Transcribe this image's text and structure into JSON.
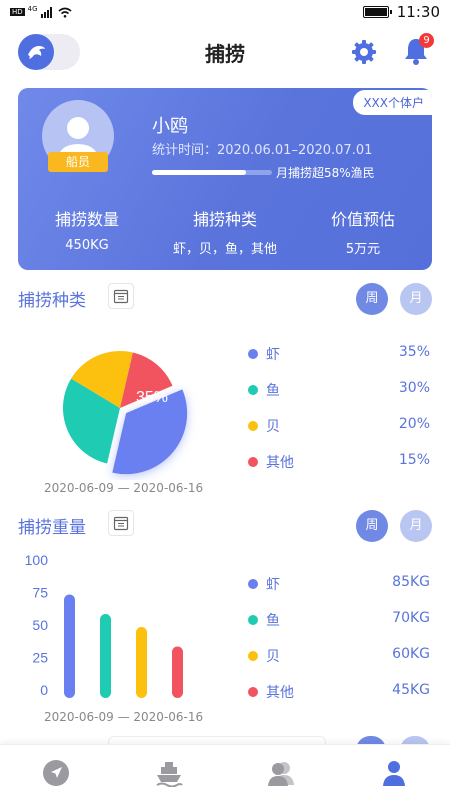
{
  "status_bar": {
    "left_labels": [
      "HD",
      "4G"
    ],
    "time": "11:30"
  },
  "header": {
    "title": "捕捞",
    "notification_count": "9"
  },
  "profile": {
    "tag": "XXX个体户",
    "role": "船员",
    "name": "小鸥",
    "period_label": "统计时间：",
    "period": "2020.06.01–2020.07.01",
    "progress_fraction": 0.78,
    "progress_text": "月捕捞超58%渔民",
    "stats": [
      {
        "label": "捕捞数量",
        "value": "450KG"
      },
      {
        "label": "捕捞种类",
        "value": "虾，贝，鱼，其他"
      },
      {
        "label": "价值预估",
        "value": "5万元"
      }
    ]
  },
  "species_section": {
    "title": "捕捞种类",
    "toggle_week": "周",
    "toggle_month": "月",
    "highlight_label": "35%",
    "date_start": "2020-06-09",
    "date_sep": "—",
    "date_end": "2020-06-16"
  },
  "weight_section": {
    "title": "捕捞重量",
    "toggle_week": "周",
    "toggle_month": "月",
    "date_start": "2020-06-09",
    "date_sep": "—",
    "date_end": "2020-06-16"
  },
  "colors": {
    "shrimp": "#6a80f0",
    "fish": "#1fcbb3",
    "shell": "#fcc10f",
    "other": "#f2545f",
    "accent": "#5a74dc"
  },
  "chart_data": [
    {
      "type": "pie",
      "categories": [
        "虾",
        "鱼",
        "贝",
        "其他"
      ],
      "values": [
        35,
        30,
        20,
        15
      ],
      "value_labels": [
        "35%",
        "30%",
        "20%",
        "15%"
      ],
      "exploded": "虾"
    },
    {
      "type": "bar",
      "categories": [
        "虾",
        "鱼",
        "贝",
        "其他"
      ],
      "values": [
        85,
        70,
        60,
        45
      ],
      "value_labels": [
        "85KG",
        "70KG",
        "60KG",
        "45KG"
      ],
      "yticks": [
        "100",
        "75",
        "50",
        "25",
        "0"
      ],
      "ylim": [
        0,
        100
      ]
    }
  ],
  "nav": {
    "items": [
      "navigation-icon",
      "ship-icon",
      "users-icon",
      "user-icon"
    ],
    "active_index": 3
  }
}
